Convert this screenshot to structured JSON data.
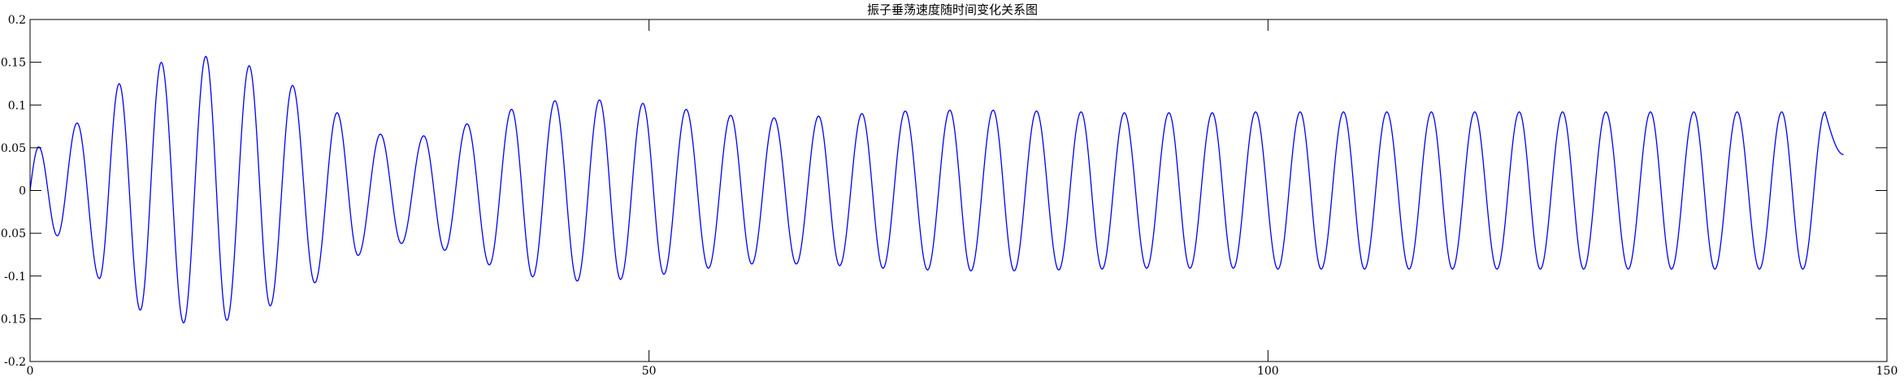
{
  "chart_data": {
    "type": "line",
    "title": "振子垂荡速度随时间变化关系图",
    "xlabel": "",
    "ylabel": "",
    "xlim": [
      0,
      150
    ],
    "ylim": [
      -0.2,
      0.2
    ],
    "grid": false,
    "legend": "none",
    "x_ticks": [
      0,
      50,
      100,
      150
    ],
    "x_tick_labels": [
      "0",
      "50",
      "100",
      "150"
    ],
    "y_ticks": [
      -0.2,
      -0.15,
      -0.1,
      -0.05,
      0,
      0.05,
      0.1,
      0.15,
      0.2
    ],
    "y_tick_labels": [
      "-0.2",
      "-0.15",
      "-0.1",
      "-0.05",
      "0",
      "0.05",
      "0.1",
      "0.15",
      "0.2"
    ],
    "series": [
      {
        "color": "#0000ff",
        "x_end": 146.5,
        "peaks": [
          [
            0.7,
            0.051
          ],
          [
            3.8,
            0.079
          ],
          [
            7.2,
            0.125
          ],
          [
            10.6,
            0.15
          ],
          [
            14.2,
            0.157
          ],
          [
            17.7,
            0.146
          ],
          [
            21.2,
            0.123
          ],
          [
            24.8,
            0.091
          ],
          [
            28.3,
            0.066
          ],
          [
            31.8,
            0.064
          ],
          [
            35.3,
            0.078
          ],
          [
            38.9,
            0.095
          ],
          [
            42.4,
            0.105
          ],
          [
            46.0,
            0.106
          ],
          [
            49.5,
            0.102
          ],
          [
            53.0,
            0.095
          ],
          [
            56.6,
            0.088
          ],
          [
            60.1,
            0.085
          ],
          [
            63.7,
            0.087
          ],
          [
            67.2,
            0.09
          ],
          [
            70.7,
            0.093
          ],
          [
            74.3,
            0.094
          ],
          [
            77.8,
            0.094
          ],
          [
            81.3,
            0.093
          ],
          [
            84.9,
            0.092
          ],
          [
            88.4,
            0.091
          ],
          [
            92.0,
            0.091
          ],
          [
            95.5,
            0.091
          ],
          [
            99.0,
            0.092
          ],
          [
            102.6,
            0.092
          ],
          [
            106.1,
            0.092
          ],
          [
            109.6,
            0.092
          ],
          [
            113.2,
            0.092
          ],
          [
            116.7,
            0.092
          ],
          [
            120.3,
            0.092
          ],
          [
            123.8,
            0.092
          ],
          [
            127.3,
            0.092
          ],
          [
            130.9,
            0.092
          ],
          [
            134.4,
            0.092
          ],
          [
            137.9,
            0.092
          ],
          [
            141.5,
            0.092
          ],
          [
            145.0,
            0.092
          ]
        ],
        "troughs": [
          [
            2.2,
            -0.053
          ],
          [
            5.6,
            -0.103
          ],
          [
            8.9,
            -0.14
          ],
          [
            12.4,
            -0.155
          ],
          [
            15.9,
            -0.152
          ],
          [
            19.4,
            -0.135
          ],
          [
            23.0,
            -0.108
          ],
          [
            26.5,
            -0.076
          ],
          [
            30.0,
            -0.062
          ],
          [
            33.5,
            -0.07
          ],
          [
            37.1,
            -0.087
          ],
          [
            40.6,
            -0.101
          ],
          [
            44.2,
            -0.106
          ],
          [
            47.7,
            -0.104
          ],
          [
            51.2,
            -0.098
          ],
          [
            54.8,
            -0.091
          ],
          [
            58.3,
            -0.086
          ],
          [
            61.9,
            -0.086
          ],
          [
            65.4,
            -0.088
          ],
          [
            68.9,
            -0.091
          ],
          [
            72.5,
            -0.093
          ],
          [
            76.0,
            -0.094
          ],
          [
            79.5,
            -0.094
          ],
          [
            83.1,
            -0.093
          ],
          [
            86.6,
            -0.092
          ],
          [
            90.2,
            -0.091
          ],
          [
            93.7,
            -0.091
          ],
          [
            97.2,
            -0.091
          ],
          [
            100.8,
            -0.092
          ],
          [
            104.3,
            -0.092
          ],
          [
            107.8,
            -0.092
          ],
          [
            111.4,
            -0.092
          ],
          [
            114.9,
            -0.092
          ],
          [
            118.5,
            -0.092
          ],
          [
            122.0,
            -0.092
          ],
          [
            125.5,
            -0.092
          ],
          [
            129.1,
            -0.092
          ],
          [
            132.6,
            -0.092
          ],
          [
            136.1,
            -0.092
          ],
          [
            139.7,
            -0.092
          ],
          [
            143.2,
            -0.092
          ]
        ],
        "end_value": 0.042
      }
    ]
  }
}
